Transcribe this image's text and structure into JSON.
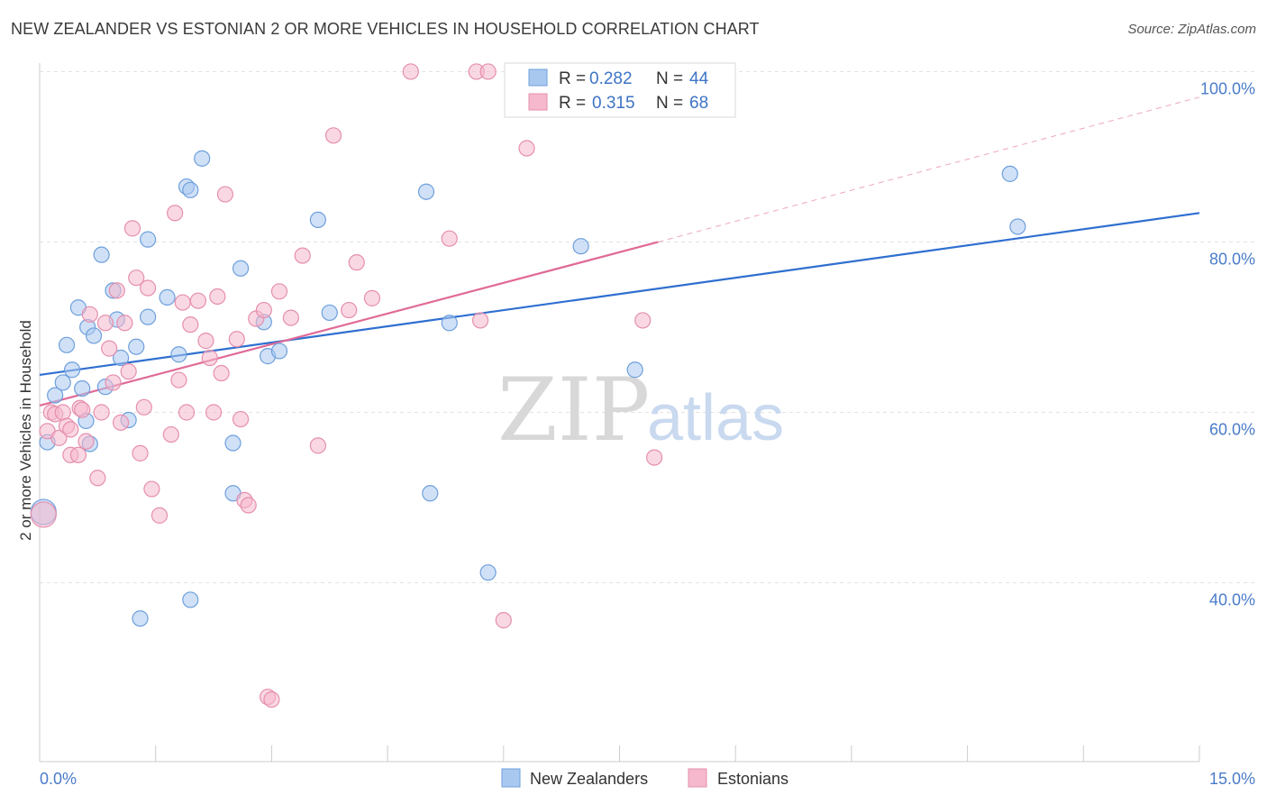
{
  "title": "NEW ZEALANDER VS ESTONIAN 2 OR MORE VEHICLES IN HOUSEHOLD CORRELATION CHART",
  "source": "Source: ZipAtlas.com",
  "watermark": {
    "zip": "ZIP",
    "atlas": "atlas"
  },
  "colors": {
    "blue_fill": "#a9c8f0",
    "blue_stroke": "#6e9fdc",
    "blue_line": "#2f6fd0",
    "pink_fill": "#f5b8cc",
    "pink_stroke": "#e58fae",
    "pink_line": "#e06a96",
    "grid": "#e3e3e3",
    "axis_text": "#4a7cc9"
  },
  "legend": {
    "rows": [
      {
        "r_label": "R = ",
        "r_value": "0.282",
        "n_label": "N = ",
        "n_value": "44",
        "color": "blue"
      },
      {
        "r_label": "R = ",
        "r_value": "0.315",
        "n_label": "N = ",
        "n_value": "68",
        "color": "pink"
      }
    ]
  },
  "bottom_legend": [
    "New Zealanders",
    "Estonians"
  ],
  "chart_data": {
    "type": "scatter",
    "title": "NEW ZEALANDER VS ESTONIAN 2 OR MORE VEHICLES IN HOUSEHOLD CORRELATION CHART",
    "xlabel": "",
    "ylabel": "2 or more Vehicles in Household",
    "xlim": [
      0,
      15
    ],
    "ylim": [
      19,
      101
    ],
    "x_tick_labels": [
      "0.0%",
      "15.0%"
    ],
    "y_ticks": [
      40,
      60,
      80,
      100
    ],
    "y_tick_labels": [
      "40.0%",
      "60.0%",
      "80.0%",
      "100.0%"
    ],
    "grid": true,
    "legend_position": "top-center",
    "series": [
      {
        "name": "New Zealanders",
        "color": "blue",
        "r": 0.282,
        "n": 44,
        "trend": {
          "x0": 0,
          "y0": 64.4,
          "x1": 15,
          "y1": 83.4,
          "dashed_to": null
        },
        "points": [
          [
            0.05,
            48.3
          ],
          [
            0.1,
            56.5
          ],
          [
            0.2,
            62.0
          ],
          [
            0.3,
            63.5
          ],
          [
            0.35,
            67.9
          ],
          [
            0.42,
            65.0
          ],
          [
            0.5,
            72.3
          ],
          [
            0.55,
            62.8
          ],
          [
            0.6,
            59.0
          ],
          [
            0.65,
            56.3
          ],
          [
            0.62,
            70.0
          ],
          [
            0.7,
            69.0
          ],
          [
            0.8,
            78.5
          ],
          [
            0.85,
            63.0
          ],
          [
            0.95,
            74.3
          ],
          [
            1.0,
            70.9
          ],
          [
            1.05,
            66.4
          ],
          [
            1.15,
            59.1
          ],
          [
            1.25,
            67.7
          ],
          [
            1.3,
            35.8
          ],
          [
            1.4,
            71.2
          ],
          [
            1.4,
            80.3
          ],
          [
            1.65,
            73.5
          ],
          [
            1.8,
            66.8
          ],
          [
            1.9,
            86.5
          ],
          [
            1.95,
            86.1
          ],
          [
            1.95,
            38.0
          ],
          [
            2.1,
            89.8
          ],
          [
            2.5,
            50.5
          ],
          [
            2.5,
            56.4
          ],
          [
            2.6,
            76.9
          ],
          [
            2.9,
            70.6
          ],
          [
            2.95,
            66.6
          ],
          [
            3.1,
            67.2
          ],
          [
            3.6,
            82.6
          ],
          [
            3.75,
            71.7
          ],
          [
            5.0,
            85.9
          ],
          [
            5.05,
            50.5
          ],
          [
            5.3,
            70.5
          ],
          [
            5.8,
            41.2
          ],
          [
            7.0,
            79.5
          ],
          [
            7.7,
            65.0
          ],
          [
            12.55,
            88.0
          ],
          [
            12.65,
            81.8
          ]
        ]
      },
      {
        "name": "Estonians",
        "color": "pink",
        "r": 0.315,
        "n": 68,
        "trend": {
          "x0": 0,
          "y0": 60.8,
          "x1": 8.0,
          "y1": 80.0,
          "dashed_to": [
            15,
            97.0
          ]
        },
        "points": [
          [
            0.05,
            48.0
          ],
          [
            0.1,
            57.8
          ],
          [
            0.15,
            60.0
          ],
          [
            0.2,
            59.8
          ],
          [
            0.25,
            57.0
          ],
          [
            0.3,
            60.0
          ],
          [
            0.35,
            58.4
          ],
          [
            0.4,
            55.0
          ],
          [
            0.5,
            55.0
          ],
          [
            0.52,
            60.5
          ],
          [
            0.55,
            60.3
          ],
          [
            0.6,
            56.6
          ],
          [
            0.65,
            71.5
          ],
          [
            0.75,
            52.3
          ],
          [
            0.8,
            60.0
          ],
          [
            0.85,
            70.5
          ],
          [
            0.9,
            67.5
          ],
          [
            0.95,
            63.5
          ],
          [
            1.0,
            74.3
          ],
          [
            1.05,
            58.8
          ],
          [
            1.1,
            70.5
          ],
          [
            1.15,
            64.8
          ],
          [
            1.2,
            81.6
          ],
          [
            1.25,
            75.8
          ],
          [
            1.3,
            55.2
          ],
          [
            1.35,
            60.6
          ],
          [
            1.4,
            74.6
          ],
          [
            1.45,
            51.0
          ],
          [
            1.55,
            47.9
          ],
          [
            1.7,
            57.4
          ],
          [
            1.75,
            83.4
          ],
          [
            1.8,
            63.8
          ],
          [
            1.85,
            72.9
          ],
          [
            1.95,
            70.3
          ],
          [
            2.05,
            73.1
          ],
          [
            2.15,
            68.4
          ],
          [
            2.2,
            66.4
          ],
          [
            2.25,
            60.0
          ],
          [
            2.3,
            73.6
          ],
          [
            2.35,
            64.6
          ],
          [
            2.4,
            85.6
          ],
          [
            2.55,
            68.6
          ],
          [
            2.6,
            59.2
          ],
          [
            2.65,
            49.7
          ],
          [
            2.7,
            49.1
          ],
          [
            2.8,
            71.0
          ],
          [
            2.9,
            72.0
          ],
          [
            2.95,
            26.6
          ],
          [
            3.0,
            26.3
          ],
          [
            3.1,
            74.2
          ],
          [
            3.25,
            71.1
          ],
          [
            3.4,
            78.4
          ],
          [
            3.6,
            56.1
          ],
          [
            3.8,
            92.5
          ],
          [
            4.0,
            72.0
          ],
          [
            4.1,
            77.6
          ],
          [
            4.3,
            73.4
          ],
          [
            4.8,
            100.0
          ],
          [
            5.3,
            80.4
          ],
          [
            5.65,
            100.0
          ],
          [
            5.7,
            70.8
          ],
          [
            5.8,
            100.0
          ],
          [
            6.0,
            35.6
          ],
          [
            6.3,
            91.0
          ],
          [
            7.8,
            70.8
          ],
          [
            7.95,
            54.7
          ],
          [
            0.4,
            58.0
          ],
          [
            1.9,
            60.0
          ]
        ]
      }
    ]
  }
}
